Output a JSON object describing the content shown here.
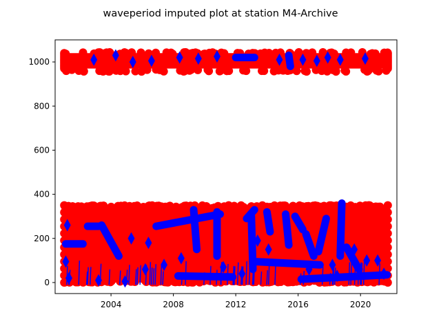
{
  "chart_data": {
    "type": "scatter",
    "title": "waveperiod imputed plot at station M4-Archive",
    "xlabel": "",
    "ylabel": "",
    "x_axis": {
      "type": "date",
      "range": [
        "2000-06-01",
        "2022-05-01"
      ],
      "ticks": [
        "2004",
        "2008",
        "2012",
        "2016",
        "2020"
      ],
      "tick_years": [
        2004,
        2008,
        2012,
        2016,
        2020
      ]
    },
    "y_axis": {
      "range": [
        -50,
        1100
      ],
      "ticks": [
        "0",
        "200",
        "400",
        "600",
        "800",
        "1000"
      ],
      "tick_values": [
        0,
        200,
        400,
        600,
        800,
        1000
      ]
    },
    "grid": false,
    "legend": "none",
    "colors": {
      "imputed": "#ff0000",
      "observed": "#0000ff"
    },
    "series": [
      {
        "color": "#ff0000",
        "bands": [
          {
            "x_start": "2001-01-01",
            "x_end": "2021-10-01",
            "y_min": 0,
            "y_max": 350
          },
          {
            "x_start": "2001-01-01",
            "x_end": "2021-10-01",
            "y_min": 970,
            "y_max": 1040
          }
        ]
      },
      {
        "color": "#0000ff",
        "segments": [
          {
            "x0": "2001.1",
            "y0": 175,
            "x1": "2002.2",
            "y1": 175
          },
          {
            "x0": "2002.5",
            "y0": 255,
            "x1": "2003.2",
            "y1": 255
          },
          {
            "x0": "2003.4",
            "y0": 260,
            "x1": "2004.5",
            "y1": 120
          },
          {
            "x0": "2006.9",
            "y0": 255,
            "x1": "2011.0",
            "y1": 310
          },
          {
            "x0": "2009.3",
            "y0": 330,
            "x1": "2009.5",
            "y1": 150
          },
          {
            "x0": "2010.8",
            "y0": 320,
            "x1": "2010.8",
            "y1": 120
          },
          {
            "x0": "2012.7",
            "y0": 290,
            "x1": "2013.2",
            "y1": 330
          },
          {
            "x0": "2013.0",
            "y0": 300,
            "x1": "2013.1",
            "y1": 60
          },
          {
            "x0": "2014.0",
            "y0": 320,
            "x1": "2014.2",
            "y1": 230
          },
          {
            "x0": "2015.2",
            "y0": 310,
            "x1": "2015.4",
            "y1": 170
          },
          {
            "x0": "2015.8",
            "y0": 300,
            "x1": "2016.3",
            "y1": 240
          },
          {
            "x0": "2016.5",
            "y0": 220,
            "x1": "2017.0",
            "y1": 120
          },
          {
            "x0": "2017.8",
            "y0": 290,
            "x1": "2017.3",
            "y1": 140
          },
          {
            "x0": "2018.8",
            "y0": 360,
            "x1": "2018.7",
            "y1": 120
          },
          {
            "x0": "2019.1",
            "y0": 160,
            "x1": "2019.9",
            "y1": 60
          },
          {
            "x0": "2016.2",
            "y0": 15,
            "x1": "2021.7",
            "y1": 35
          },
          {
            "x0": "2013.2",
            "y0": 95,
            "x1": "2017.4",
            "y1": 80
          },
          {
            "x0": "2008.3",
            "y0": 30,
            "x1": "2011.8",
            "y1": 25
          },
          {
            "x0": "2012.0",
            "y0": 1020,
            "x1": "2013.2",
            "y1": 1020
          },
          {
            "x0": "2015.4",
            "y0": 1030,
            "x1": "2015.5",
            "y1": 980
          }
        ],
        "points": [
          [
            2001.2,
            260
          ],
          [
            2001.1,
            95
          ],
          [
            2001.3,
            20
          ],
          [
            2002.9,
            1010
          ],
          [
            2004.3,
            1030
          ],
          [
            2005.4,
            1000
          ],
          [
            2006.6,
            1005
          ],
          [
            2008.4,
            1020
          ],
          [
            2009.6,
            1015
          ],
          [
            2010.8,
            1025
          ],
          [
            2014.8,
            1010
          ],
          [
            2016.3,
            1010
          ],
          [
            2017.2,
            1005
          ],
          [
            2017.9,
            1020
          ],
          [
            2018.7,
            1010
          ],
          [
            2020.3,
            1015
          ],
          [
            2005.3,
            200
          ],
          [
            2006.2,
            60
          ],
          [
            2007.4,
            80
          ],
          [
            2008.5,
            110
          ],
          [
            2011.2,
            70
          ],
          [
            2012.4,
            40
          ],
          [
            2014.1,
            150
          ],
          [
            2016.7,
            60
          ],
          [
            2018.2,
            80
          ],
          [
            2019.6,
            150
          ],
          [
            2020.4,
            100
          ],
          [
            2021.5,
            40
          ],
          [
            2003.2,
            10
          ],
          [
            2004.9,
            5
          ],
          [
            2006.4,
            180
          ],
          [
            2013.4,
            190
          ],
          [
            2018.5,
            30
          ],
          [
            2021.1,
            100
          ]
        ]
      }
    ]
  }
}
